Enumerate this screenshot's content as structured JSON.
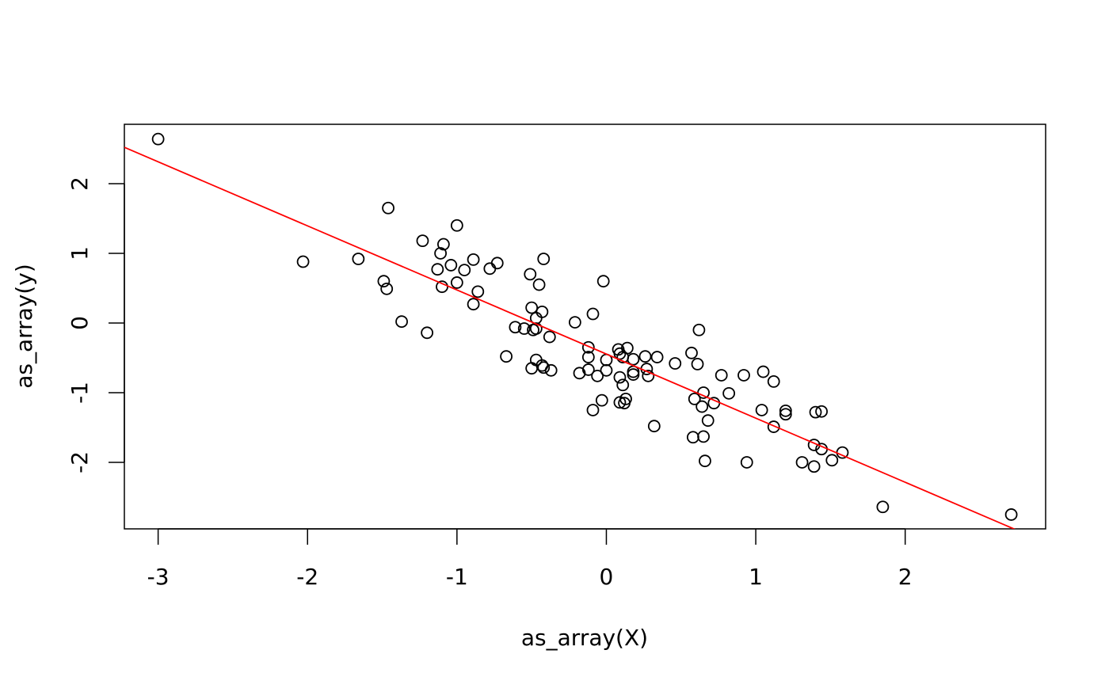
{
  "chart_data": {
    "type": "scatter",
    "x_label": "as_array(X)",
    "y_label": "as_array(y)",
    "point_color": "#000000",
    "x": [
      -3.0,
      -2.03,
      -1.66,
      -1.46,
      -1.49,
      -1.47,
      -1.37,
      -1.2,
      -1.23,
      -1.0,
      -1.09,
      -1.11,
      -1.13,
      -1.04,
      -0.95,
      -0.89,
      -1.0,
      -1.1,
      -0.86,
      -0.89,
      -0.78,
      -0.73,
      -0.51,
      -0.42,
      -0.45,
      -0.5,
      -0.43,
      -0.47,
      -0.61,
      -0.55,
      -0.47,
      -0.49,
      -0.38,
      -0.67,
      -0.47,
      -0.5,
      -0.43,
      -0.42,
      -0.37,
      -0.21,
      -0.09,
      -0.02,
      -0.12,
      -0.12,
      -0.18,
      -0.12,
      0.0,
      0.0,
      -0.06,
      -0.03,
      -0.09,
      0.08,
      0.09,
      0.11,
      0.14,
      0.09,
      0.11,
      0.13,
      0.09,
      0.12,
      0.18,
      0.18,
      0.18,
      0.26,
      0.27,
      0.28,
      0.34,
      0.32,
      0.46,
      0.57,
      0.62,
      0.61,
      0.59,
      0.58,
      0.65,
      0.64,
      0.65,
      0.68,
      0.72,
      0.66,
      0.77,
      0.82,
      0.92,
      0.94,
      1.05,
      1.12,
      1.04,
      1.12,
      1.2,
      1.2,
      1.31,
      1.4,
      1.44,
      1.39,
      1.44,
      1.39,
      1.51,
      1.58,
      1.85,
      2.71
    ],
    "y": [
      2.64,
      0.88,
      0.92,
      1.65,
      0.6,
      0.49,
      0.02,
      -0.14,
      1.18,
      1.4,
      1.13,
      1.0,
      0.77,
      0.83,
      0.76,
      0.91,
      0.58,
      0.52,
      0.45,
      0.27,
      0.78,
      0.86,
      0.7,
      0.92,
      0.55,
      0.22,
      0.16,
      0.07,
      -0.06,
      -0.08,
      -0.08,
      -0.1,
      -0.2,
      -0.48,
      -0.53,
      -0.65,
      -0.61,
      -0.64,
      -0.68,
      0.01,
      0.13,
      0.6,
      -0.35,
      -0.49,
      -0.72,
      -0.67,
      -0.53,
      -0.68,
      -0.76,
      -1.11,
      -1.25,
      -0.38,
      -0.44,
      -0.49,
      -0.36,
      -0.78,
      -0.89,
      -1.09,
      -1.14,
      -1.15,
      -0.52,
      -0.7,
      -0.74,
      -0.48,
      -0.66,
      -0.76,
      -0.49,
      -1.48,
      -0.58,
      -0.43,
      -0.1,
      -0.59,
      -1.09,
      -1.64,
      -1.63,
      -1.2,
      -1.0,
      -1.4,
      -1.15,
      -1.98,
      -0.75,
      -1.01,
      -0.75,
      -2.0,
      -0.7,
      -0.84,
      -1.25,
      -1.49,
      -1.26,
      -1.31,
      -2.0,
      -1.28,
      -1.27,
      -1.75,
      -1.81,
      -2.06,
      -1.97,
      -1.86,
      -2.64,
      -2.75
    ],
    "abline": {
      "intercept": -0.446,
      "slope": -0.92,
      "color": "#ff0000"
    },
    "xlim": [
      -3.226,
      2.94
    ],
    "ylim": [
      -2.955,
      2.852
    ],
    "xticks": [
      -3,
      -2,
      -1,
      0,
      1,
      2
    ],
    "yticks": [
      -2,
      -1,
      0,
      1,
      2
    ]
  }
}
